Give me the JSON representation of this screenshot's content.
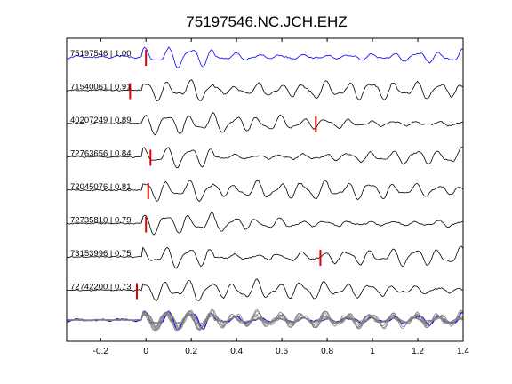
{
  "chart_data": {
    "type": "line",
    "title": "75197546.NC.JCH.EHZ",
    "xlabel": "",
    "ylabel": "",
    "xlim": [
      -0.35,
      1.4
    ],
    "xticks": [
      "-0.2",
      "0",
      "0.2",
      "0.4",
      "0.6",
      "0.8",
      "1",
      "1.2",
      "1.4"
    ],
    "xtick_values": [
      -0.2,
      0,
      0.2,
      0.4,
      0.6,
      0.8,
      1.0,
      1.2,
      1.4
    ],
    "grid": false,
    "colors": {
      "reference": "#0000ff",
      "matches": "#000000",
      "stack_overlay": "#808080",
      "pick": "#dd0000"
    },
    "series": [
      {
        "name": "75197546 | 1.00",
        "pick": 0.0,
        "reference": true
      },
      {
        "name": "71540061 | 0.91",
        "pick": -0.07
      },
      {
        "name": "40207249 | 0.89",
        "pick": 0.75
      },
      {
        "name": "72763656 | 0.84",
        "pick": 0.02
      },
      {
        "name": "72045076 | 0.81",
        "pick": 0.01
      },
      {
        "name": "72735810 | 0.79",
        "pick": 0.0
      },
      {
        "name": "73153996 | 0.75",
        "pick": 0.77
      },
      {
        "name": "72742200 | 0.73",
        "pick": -0.04
      }
    ]
  }
}
